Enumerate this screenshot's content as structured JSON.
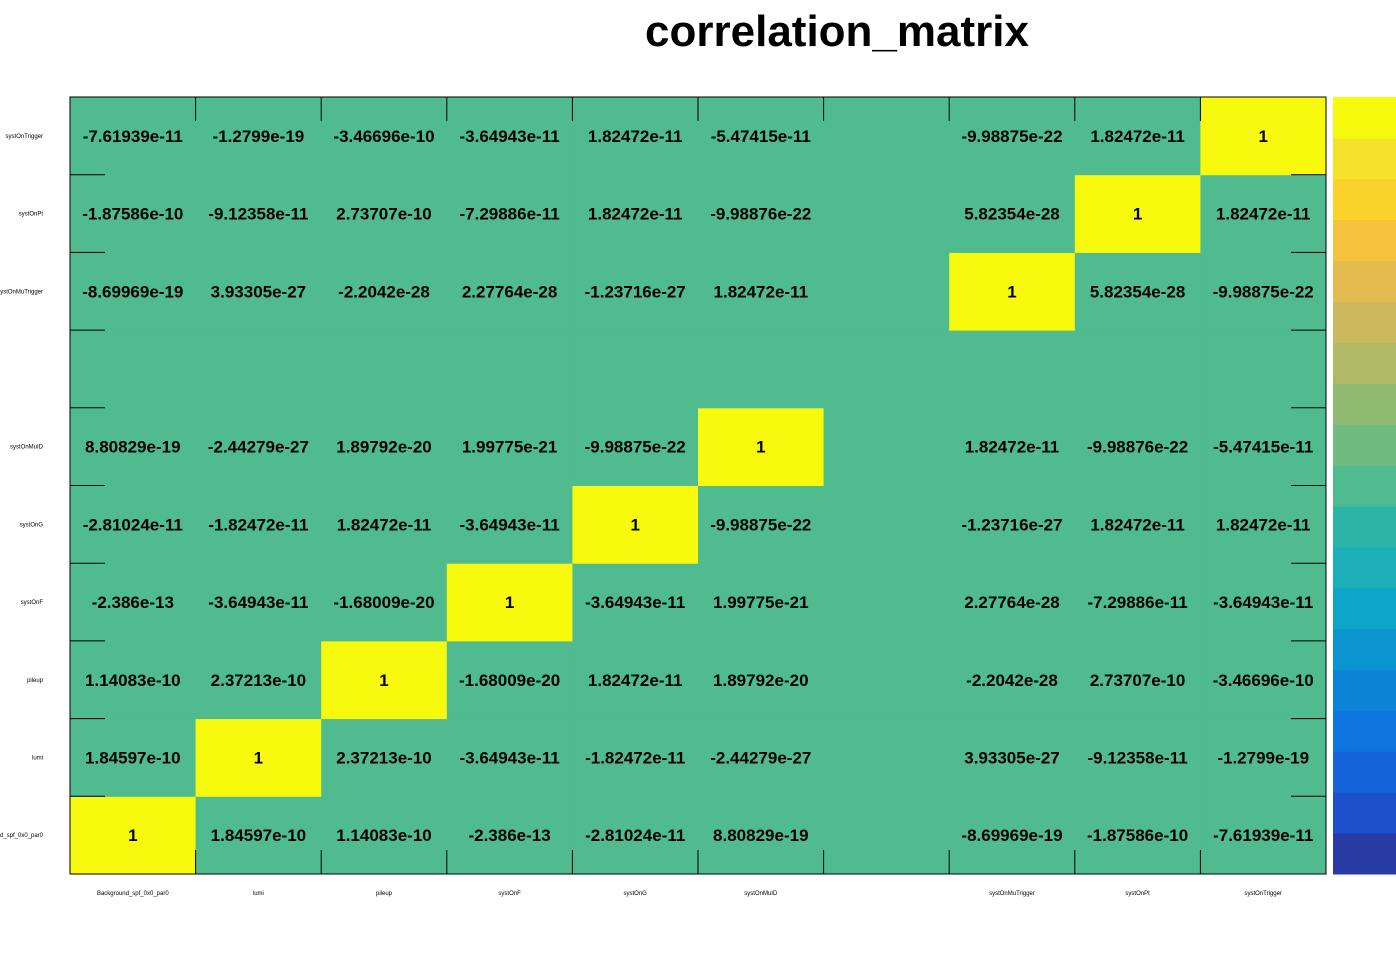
{
  "chart_data": {
    "type": "heatmap",
    "title": "correlation_matrix",
    "xlabels": [
      "Background_spf_0x0_par0",
      "lumi",
      "pileup",
      "systOnF",
      "systOnG",
      "systOnMuID",
      "",
      "systOnMuTrigger",
      "systOnPt",
      "systOnTrigger"
    ],
    "ylabels": [
      "Background_spf_0x0_par0",
      "lumi",
      "pileup",
      "systOnF",
      "systOnG",
      "systOnMuID",
      "",
      "systOnMuTrigger",
      "systOnPt",
      "systOnTrigger"
    ],
    "rows_bottom_to_top": [
      [
        "1",
        "1.84597e-10",
        "1.14083e-10",
        "-2.386e-13",
        "-2.81024e-11",
        "8.80829e-19",
        "",
        "-8.69969e-19",
        "-1.87586e-10",
        "-7.61939e-11"
      ],
      [
        "1.84597e-10",
        "1",
        "2.37213e-10",
        "-3.64943e-11",
        "-1.82472e-11",
        "-2.44279e-27",
        "",
        "3.93305e-27",
        "-9.12358e-11",
        "-1.2799e-19"
      ],
      [
        "1.14083e-10",
        "2.37213e-10",
        "1",
        "-1.68009e-20",
        "1.82472e-11",
        "1.89792e-20",
        "",
        "-2.2042e-28",
        "2.73707e-10",
        "-3.46696e-10"
      ],
      [
        "-2.386e-13",
        "-3.64943e-11",
        "-1.68009e-20",
        "1",
        "-3.64943e-11",
        "1.99775e-21",
        "",
        "2.27764e-28",
        "-7.29886e-11",
        "-3.64943e-11"
      ],
      [
        "-2.81024e-11",
        "-1.82472e-11",
        "1.82472e-11",
        "-3.64943e-11",
        "1",
        "-9.98875e-22",
        "",
        "-1.23716e-27",
        "1.82472e-11",
        "1.82472e-11"
      ],
      [
        "8.80829e-19",
        "-2.44279e-27",
        "1.89792e-20",
        "1.99775e-21",
        "-9.98875e-22",
        "1",
        "",
        "1.82472e-11",
        "-9.98876e-22",
        "-5.47415e-11"
      ],
      [
        "",
        "",
        "",
        "",
        "",
        "",
        "",
        "",
        "",
        ""
      ],
      [
        "-8.69969e-19",
        "3.93305e-27",
        "-2.2042e-28",
        "2.27764e-28",
        "-1.23716e-27",
        "1.82472e-11",
        "",
        "1",
        "5.82354e-28",
        "-9.98875e-22"
      ],
      [
        "-1.87586e-10",
        "-9.12358e-11",
        "2.73707e-10",
        "-7.29886e-11",
        "1.82472e-11",
        "-9.98876e-22",
        "",
        "5.82354e-28",
        "1",
        "1.82472e-11"
      ],
      [
        "-7.61939e-11",
        "-1.2799e-19",
        "-3.46696e-10",
        "-3.64943e-11",
        "1.82472e-11",
        "-5.47415e-11",
        "",
        "-9.98875e-22",
        "1.82472e-11",
        "1"
      ]
    ],
    "zlim": [
      -1,
      1
    ],
    "colors": {
      "high": "#f8fa0d",
      "neutral": "#50bb8f",
      "palette_bottom_to_top": [
        "#283ba5",
        "#1d4fca",
        "#1463d9",
        "#0e74de",
        "#0b84d8",
        "#0a94d0",
        "#0da5c7",
        "#1cafb7",
        "#2ab5a6",
        "#50bb8f",
        "#70bb80",
        "#91bb72",
        "#b0ba65",
        "#ccb85d",
        "#e4bb4f",
        "#f5c23c",
        "#fbd22b",
        "#f4e22b",
        "#f8fa0d"
      ]
    },
    "grid": false,
    "colorbar": "right"
  }
}
